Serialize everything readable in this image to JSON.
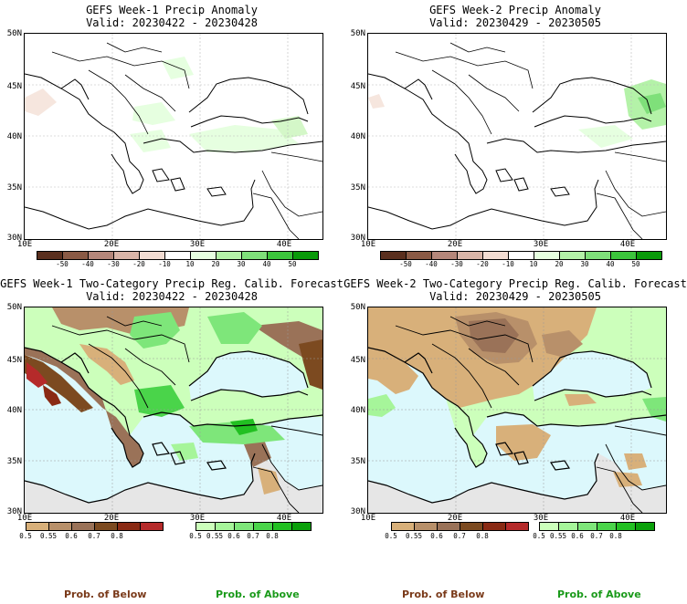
{
  "panels": [
    {
      "title": "GEFS Week-1 Precip Anomaly",
      "valid": "Valid: 20230422 - 20230428",
      "type": "anomaly"
    },
    {
      "title": "GEFS Week-2 Precip Anomaly",
      "valid": "Valid: 20230429 - 20230505",
      "type": "anomaly"
    },
    {
      "title": "GEFS Week-1 Two-Category Precip Reg. Calib. Forecast",
      "valid": "Valid: 20230422 - 20230428",
      "type": "probability"
    },
    {
      "title": "GEFS Week-2 Two-Category Precip Reg. Calib. Forecast",
      "valid": "Valid: 20230429 - 20230505",
      "type": "probability"
    }
  ],
  "axes": {
    "lat_labels": [
      "50N",
      "45N",
      "40N",
      "35N",
      "30N"
    ],
    "lon_labels": [
      "10E",
      "20E",
      "30E",
      "40E"
    ],
    "lat_range": [
      30,
      50
    ],
    "lon_range": [
      10,
      44
    ]
  },
  "anomaly_colorbar": {
    "ticks": [
      "-50",
      "-40",
      "-30",
      "-20",
      "-10",
      "10",
      "20",
      "30",
      "40",
      "50"
    ],
    "colors": [
      "#5a2f1e",
      "#8a5a45",
      "#b5877a",
      "#d9b5a8",
      "#f2dcd2",
      "#ffffff",
      "#e6ffe0",
      "#b4f2a8",
      "#7fe07a",
      "#3cc43c",
      "#0a9a0a"
    ]
  },
  "prob_colorbar_below": {
    "ticks": [
      "0.5",
      "0.55",
      "0.6",
      "0.7",
      "0.8"
    ],
    "colors": [
      "#d8b07a",
      "#b8906a",
      "#9a7258",
      "#7c4a20",
      "#8a2a14",
      "#b52a2a"
    ]
  },
  "prob_colorbar_above": {
    "ticks": [
      "0.5",
      "0.55",
      "0.6",
      "0.7",
      "0.8"
    ],
    "colors": [
      "#ccffbb",
      "#a6f59a",
      "#7ee67a",
      "#4ad44a",
      "#22c022",
      "#0aa00a"
    ]
  },
  "captions": {
    "below": "Prob. of Below",
    "above": "Prob. of Above"
  },
  "colors": {
    "sea": "#dcf8fc",
    "nonland_gray": "#e6e6e6",
    "border": "#000000",
    "caption_below": "#7a3a1a",
    "caption_above": "#1a9a1a"
  }
}
